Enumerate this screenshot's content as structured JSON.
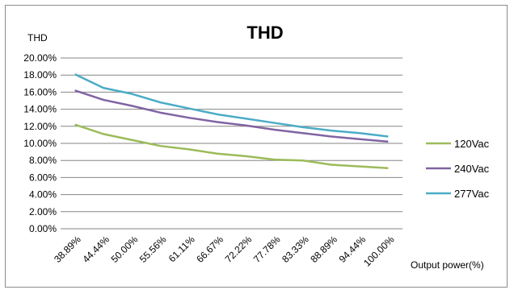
{
  "chart_data": {
    "type": "line",
    "title": "THD",
    "ylabel": "THD",
    "xlabel": "Output power(%)",
    "categories": [
      "38.89%",
      "44.44%",
      "50.00%",
      "55.56%",
      "61.11%",
      "66.67%",
      "72.22%",
      "77.78%",
      "83.33%",
      "88.89%",
      "94.44%",
      "100.00%"
    ],
    "ylim": [
      0,
      20
    ],
    "yticks": [
      "0.00%",
      "2.00%",
      "4.00%",
      "6.00%",
      "8.00%",
      "10.00%",
      "12.00%",
      "14.00%",
      "16.00%",
      "18.00%",
      "20.00%"
    ],
    "grid": true,
    "legend": "right",
    "series": [
      {
        "name": "120Vac",
        "color": "#9bbb59",
        "values": [
          12.2,
          11.1,
          10.4,
          9.7,
          9.3,
          8.8,
          8.5,
          8.1,
          8.0,
          7.5,
          7.3,
          7.1
        ]
      },
      {
        "name": "240Vac",
        "color": "#8064a2",
        "values": [
          16.2,
          15.1,
          14.4,
          13.6,
          13.0,
          12.5,
          12.1,
          11.6,
          11.2,
          10.8,
          10.5,
          10.2
        ]
      },
      {
        "name": "277Vac",
        "color": "#4bacc6",
        "values": [
          18.1,
          16.5,
          15.8,
          14.8,
          14.1,
          13.4,
          12.9,
          12.4,
          11.9,
          11.5,
          11.2,
          10.8
        ]
      }
    ]
  }
}
